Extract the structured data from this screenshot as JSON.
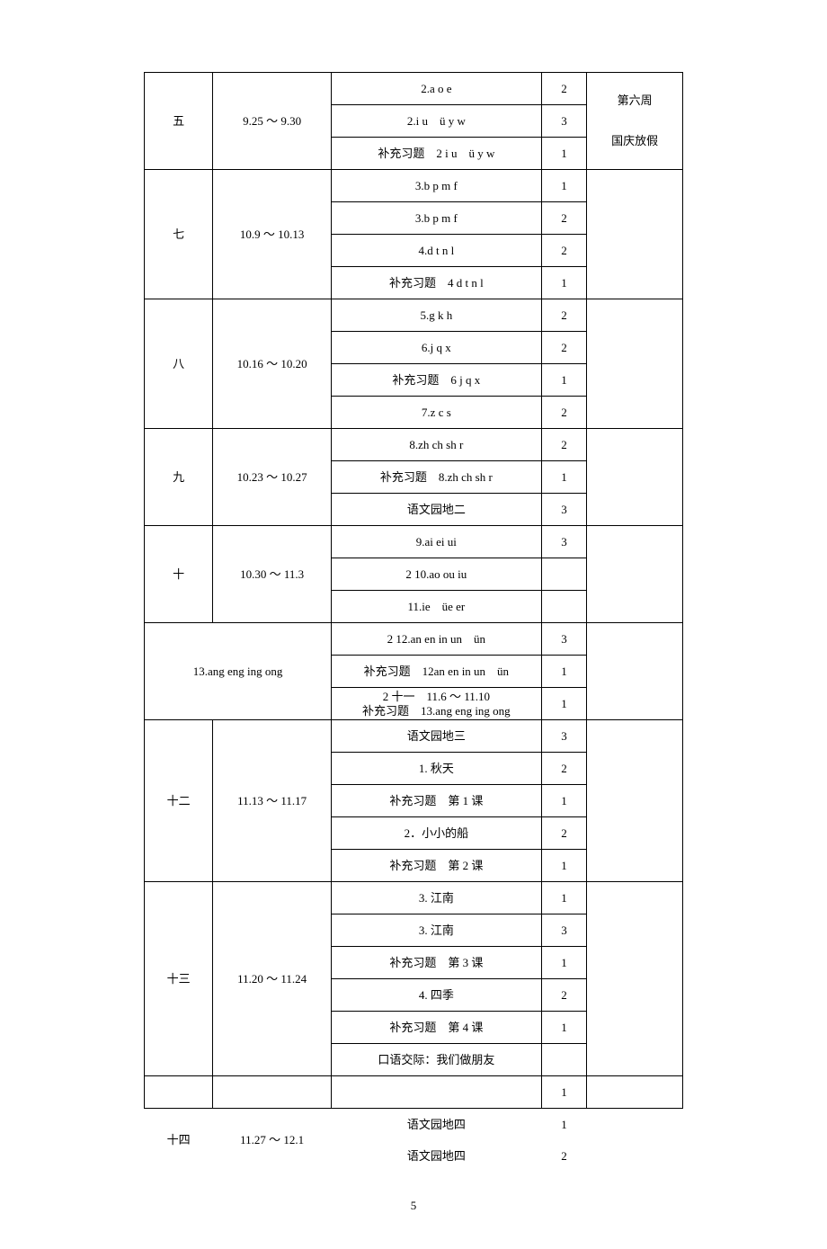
{
  "weeks": [
    {
      "week": "五",
      "date": "9.25 ～ 9.30",
      "note_lines": [
        "第六周",
        "国庆放假"
      ],
      "rows": [
        {
          "content": "2.a o e",
          "hours": "2"
        },
        {
          "content": "2.i u　ü y w",
          "hours": "3"
        },
        {
          "content": "补充习题　2 i u　ü y w",
          "hours": "1"
        }
      ]
    },
    {
      "week": "七",
      "date": "10.9 ～ 10.13",
      "note_lines": [],
      "rows": [
        {
          "content": "3.b p m f",
          "hours": "1"
        },
        {
          "content": "3.b p m f",
          "hours": "2"
        },
        {
          "content": "4.d t n l",
          "hours": "2"
        },
        {
          "content": "补充习题　4 d t n l",
          "hours": "1"
        }
      ]
    },
    {
      "week": "八",
      "date": "10.16 ～ 10.20",
      "note_lines": [],
      "rows": [
        {
          "content": "5.g k h",
          "hours": "2"
        },
        {
          "content": "6.j q x",
          "hours": "2"
        },
        {
          "content": "补充习题　6 j q x",
          "hours": "1"
        },
        {
          "content": "7.z c s",
          "hours": "2"
        }
      ]
    },
    {
      "week": "九",
      "date": "10.23 ～ 10.27",
      "note_lines": [],
      "rows": [
        {
          "content": "8.zh ch sh r",
          "hours": "2"
        },
        {
          "content": "补充习题　8.zh ch sh r",
          "hours": "1"
        },
        {
          "content": "语文园地二",
          "hours": "3"
        }
      ]
    },
    {
      "week": "十",
      "date": "10.30 ～ 11.3",
      "note_lines": [],
      "rows": [
        {
          "content": "9.ai ei ui",
          "hours": "3"
        },
        {
          "content": "2 10.ao ou iu",
          "hours": ""
        },
        {
          "content": "11.ie　üe er",
          "hours": ""
        }
      ]
    },
    {
      "week": "",
      "date": "13.ang eng ing ong",
      "date_colspan": 2,
      "note_lines": [],
      "rows": [
        {
          "content": "2 12.an en in un　ün",
          "hours": "3"
        },
        {
          "content": "补充习题　12an en in un　ün",
          "hours": "1"
        },
        {
          "content": "2 十一　11.6 ～ 11.10\n补充习题　13.ang eng ing ong",
          "hours": "1"
        }
      ]
    },
    {
      "week": "十二",
      "date": "11.13 ～ 11.17",
      "note_lines": [],
      "rows": [
        {
          "content": "语文园地三",
          "hours": "3"
        },
        {
          "content": "1. 秋天",
          "hours": "2"
        },
        {
          "content": "补充习题　第 1 课",
          "hours": "1"
        },
        {
          "content": "2．小小的船",
          "hours": "2"
        },
        {
          "content": "补充习题　第 2 课",
          "hours": "1"
        }
      ]
    },
    {
      "week": "十三",
      "date": "11.20 ～ 11.24",
      "note_lines": [],
      "rows": [
        {
          "content": "3. 江南",
          "hours": "1"
        },
        {
          "content": "3. 江南",
          "hours": "3"
        },
        {
          "content": "补充习题　第 3 课",
          "hours": "1"
        },
        {
          "content": "4. 四季",
          "hours": "2"
        },
        {
          "content": "补充习题　第 4 课",
          "hours": "1"
        },
        {
          "content": "口语交际：我们做朋友",
          "hours": ""
        }
      ]
    },
    {
      "week": "",
      "date": "",
      "note_lines": [],
      "rows": [
        {
          "content": "",
          "hours": "1"
        }
      ]
    },
    {
      "week": "十四",
      "date": "11.27 ～ 12.1",
      "note_lines": [],
      "no_border": true,
      "rows": [
        {
          "content": "语文园地四",
          "hours": "1"
        },
        {
          "content": "语文园地四",
          "hours": "2"
        }
      ]
    }
  ],
  "page_number": "5"
}
